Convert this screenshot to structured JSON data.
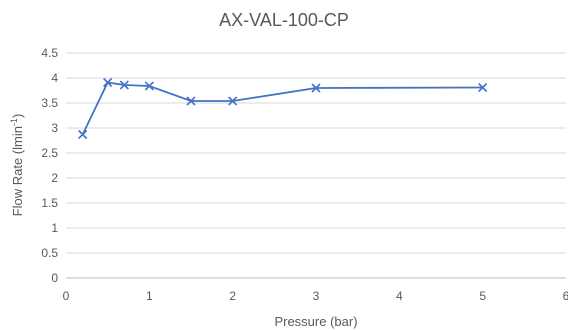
{
  "chart_data": {
    "type": "scatter",
    "title": "AX-VAL-100-CP",
    "xlabel": "Pressure (bar)",
    "ylabel": {
      "main": "Flow Rate (lmin",
      "sup": "-1",
      "end": ")"
    },
    "xlim": [
      0,
      6
    ],
    "ylim": [
      0,
      4.5
    ],
    "xticks": [
      "0",
      "1",
      "2",
      "3",
      "4",
      "5",
      "6"
    ],
    "yticks": [
      "0",
      "0.5",
      "1",
      "1.5",
      "2",
      "2.5",
      "3",
      "3.5",
      "4",
      "4.5"
    ],
    "grid": true,
    "legend": "none",
    "series": [
      {
        "color": "#4472c4",
        "marker": "x",
        "line": true,
        "points": [
          {
            "x": 0.2,
            "y": 2.87
          },
          {
            "x": 0.5,
            "y": 3.91
          },
          {
            "x": 0.7,
            "y": 3.86
          },
          {
            "x": 1.0,
            "y": 3.84
          },
          {
            "x": 1.5,
            "y": 3.54
          },
          {
            "x": 2.0,
            "y": 3.54
          },
          {
            "x": 3.0,
            "y": 3.8
          },
          {
            "x": 5.0,
            "y": 3.81
          }
        ]
      }
    ]
  }
}
